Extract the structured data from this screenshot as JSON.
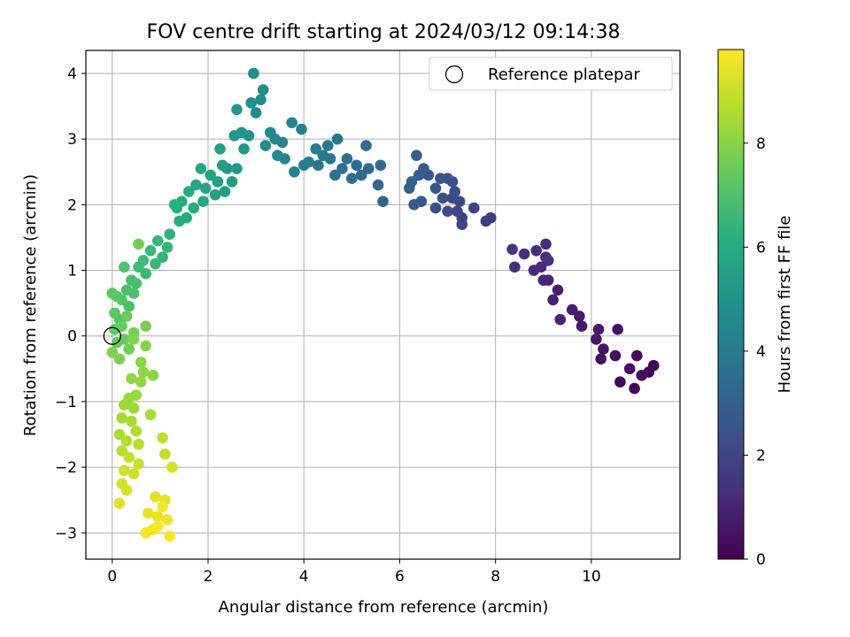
{
  "chart_data": {
    "type": "scatter",
    "title": "FOV centre drift starting at 2024/03/12 09:14:38",
    "xlabel": "Angular distance from reference (arcmin)",
    "ylabel": "Rotation from reference (arcmin)",
    "xlim": [
      -0.55,
      11.85
    ],
    "ylim": [
      -3.4,
      4.35
    ],
    "xticks": [
      0,
      2,
      4,
      6,
      8,
      10
    ],
    "yticks": [
      -3,
      -2,
      -1,
      0,
      1,
      2,
      3,
      4
    ],
    "grid": true,
    "legend": {
      "placement": "top-right",
      "entries": [
        "Reference platepar"
      ]
    },
    "colorbar": {
      "label": "Hours from first FF file",
      "colormap": "viridis",
      "range": [
        0,
        9.8
      ],
      "ticks": [
        0,
        2,
        4,
        6,
        8
      ]
    },
    "reference_point": {
      "x": 0,
      "y": 0
    },
    "series": [
      {
        "name": "Reference platepar",
        "marker": "open-circle",
        "points": [
          [
            0,
            0
          ]
        ]
      },
      {
        "marker": "filled-circle",
        "color_by": "hours",
        "points": [
          [
            10.9,
            -0.8,
            0.05
          ],
          [
            11.2,
            -0.55,
            0.1
          ],
          [
            10.6,
            -0.7,
            0.15
          ],
          [
            11.3,
            -0.45,
            0.2
          ],
          [
            10.95,
            -0.3,
            0.25
          ],
          [
            10.8,
            -0.5,
            0.3
          ],
          [
            11.05,
            -0.6,
            0.35
          ],
          [
            10.5,
            -0.3,
            0.4
          ],
          [
            10.2,
            -0.35,
            0.45
          ],
          [
            10.55,
            0.1,
            0.5
          ],
          [
            10.25,
            -0.2,
            0.55
          ],
          [
            10.1,
            -0.05,
            0.6
          ],
          [
            10.15,
            0.1,
            0.65
          ],
          [
            9.8,
            0.15,
            0.7
          ],
          [
            9.75,
            0.3,
            0.75
          ],
          [
            9.6,
            0.4,
            0.8
          ],
          [
            9.3,
            0.7,
            0.85
          ],
          [
            9.2,
            0.55,
            0.9
          ],
          [
            9.35,
            0.25,
            0.95
          ],
          [
            9.1,
            0.85,
            1.0
          ],
          [
            9.0,
            0.85,
            1.05
          ],
          [
            8.95,
            1.05,
            1.1
          ],
          [
            8.8,
            1.0,
            1.15
          ],
          [
            9.05,
            1.2,
            1.2
          ],
          [
            9.05,
            1.4,
            1.25
          ],
          [
            8.85,
            1.3,
            1.3
          ],
          [
            8.6,
            1.25,
            1.35
          ],
          [
            8.4,
            1.05,
            1.4
          ],
          [
            8.35,
            1.32,
            1.45
          ],
          [
            9.1,
            1.15,
            1.5
          ],
          [
            7.9,
            1.8,
            1.7
          ],
          [
            7.8,
            1.75,
            1.75
          ],
          [
            7.55,
            1.95,
            1.85
          ],
          [
            7.3,
            1.8,
            1.9
          ],
          [
            7.3,
            1.7,
            2.0
          ],
          [
            7.2,
            1.9,
            2.05
          ],
          [
            7.25,
            2.05,
            2.1
          ],
          [
            7.1,
            2.1,
            2.15
          ],
          [
            7.0,
            1.9,
            2.2
          ],
          [
            7.15,
            2.2,
            2.25
          ],
          [
            6.9,
            2.1,
            2.3
          ],
          [
            6.75,
            1.95,
            2.4
          ],
          [
            7.0,
            2.4,
            2.45
          ],
          [
            7.1,
            2.35,
            2.5
          ],
          [
            6.85,
            2.4,
            2.55
          ],
          [
            6.75,
            2.25,
            2.6
          ],
          [
            6.6,
            2.45,
            2.7
          ],
          [
            6.45,
            2.05,
            2.75
          ],
          [
            6.3,
            2.0,
            2.8
          ],
          [
            6.5,
            2.55,
            2.85
          ],
          [
            6.4,
            2.45,
            2.9
          ],
          [
            6.35,
            2.75,
            3.0
          ],
          [
            6.2,
            2.25,
            3.05
          ],
          [
            6.25,
            2.35,
            3.1
          ],
          [
            5.65,
            2.05,
            3.15
          ],
          [
            5.55,
            2.3,
            3.2
          ],
          [
            5.6,
            2.6,
            3.3
          ],
          [
            5.35,
            2.55,
            3.35
          ],
          [
            5.2,
            2.45,
            3.4
          ],
          [
            5.3,
            2.9,
            3.45
          ],
          [
            5.1,
            2.6,
            3.5
          ],
          [
            5.0,
            2.4,
            3.55
          ],
          [
            4.9,
            2.7,
            3.6
          ],
          [
            4.8,
            2.55,
            3.65
          ],
          [
            4.65,
            2.45,
            3.7
          ],
          [
            4.7,
            3.0,
            3.75
          ],
          [
            4.55,
            2.7,
            3.8
          ],
          [
            4.5,
            2.9,
            3.9
          ],
          [
            4.4,
            2.75,
            3.95
          ],
          [
            4.3,
            2.6,
            4.0
          ],
          [
            4.25,
            2.85,
            4.05
          ],
          [
            4.1,
            2.65,
            4.1
          ],
          [
            4.0,
            2.6,
            4.15
          ],
          [
            3.95,
            3.15,
            4.2
          ],
          [
            3.8,
            2.5,
            4.25
          ],
          [
            3.75,
            3.25,
            4.3
          ],
          [
            3.6,
            2.7,
            4.35
          ],
          [
            3.55,
            2.95,
            4.4
          ],
          [
            3.4,
            3.0,
            4.45
          ],
          [
            3.45,
            2.75,
            4.5
          ],
          [
            3.3,
            3.1,
            4.6
          ],
          [
            3.2,
            2.9,
            4.65
          ],
          [
            3.1,
            3.6,
            4.7
          ],
          [
            3.15,
            3.75,
            4.75
          ],
          [
            3.0,
            3.4,
            4.8
          ],
          [
            2.95,
            4.0,
            4.85
          ],
          [
            2.9,
            3.55,
            4.9
          ],
          [
            2.85,
            3.05,
            4.95
          ],
          [
            2.75,
            2.85,
            5.0
          ],
          [
            2.7,
            3.1,
            5.05
          ],
          [
            2.6,
            3.45,
            5.1
          ],
          [
            2.55,
            3.05,
            5.15
          ],
          [
            2.6,
            2.55,
            5.2
          ],
          [
            2.5,
            2.35,
            5.25
          ],
          [
            2.4,
            2.55,
            5.3
          ],
          [
            2.35,
            2.2,
            5.35
          ],
          [
            2.3,
            2.6,
            5.4
          ],
          [
            2.25,
            2.85,
            5.45
          ],
          [
            2.2,
            2.35,
            5.5
          ],
          [
            2.15,
            2.15,
            5.55
          ],
          [
            2.05,
            2.45,
            5.6
          ],
          [
            1.95,
            2.25,
            5.7
          ],
          [
            1.9,
            2.05,
            5.75
          ],
          [
            1.85,
            2.55,
            5.8
          ],
          [
            1.75,
            2.3,
            5.85
          ],
          [
            1.7,
            1.95,
            5.9
          ],
          [
            1.6,
            2.2,
            5.95
          ],
          [
            1.55,
            1.8,
            6.0
          ],
          [
            1.45,
            2.05,
            6.05
          ],
          [
            1.4,
            1.75,
            6.1
          ],
          [
            1.35,
            1.95,
            6.15
          ],
          [
            1.3,
            2.0,
            6.2
          ],
          [
            1.2,
            1.55,
            6.3
          ],
          [
            1.15,
            1.35,
            6.35
          ],
          [
            1.05,
            1.2,
            6.4
          ],
          [
            0.95,
            1.45,
            6.45
          ],
          [
            0.9,
            1.1,
            6.5
          ],
          [
            0.8,
            1.3,
            6.55
          ],
          [
            0.7,
            0.95,
            6.6
          ],
          [
            0.65,
            1.15,
            6.65
          ],
          [
            0.55,
            1.05,
            6.7
          ],
          [
            0.5,
            0.8,
            6.8
          ],
          [
            0.45,
            0.65,
            6.85
          ],
          [
            0.4,
            0.85,
            6.9
          ],
          [
            0.35,
            0.45,
            6.95
          ],
          [
            0.3,
            0.7,
            7.0
          ],
          [
            0.25,
            1.05,
            7.05
          ],
          [
            0.2,
            0.55,
            7.1
          ],
          [
            0.15,
            0.25,
            7.15
          ],
          [
            0.1,
            0.6,
            7.2
          ],
          [
            0.05,
            0.35,
            7.25
          ],
          [
            0.0,
            0.65,
            7.3
          ],
          [
            0.05,
            0.1,
            7.35
          ],
          [
            0.1,
            -0.1,
            7.4
          ],
          [
            0.2,
            0.15,
            7.45
          ],
          [
            0.25,
            -0.05,
            7.5
          ],
          [
            0.3,
            0.3,
            7.55
          ],
          [
            0.35,
            -0.2,
            7.6
          ],
          [
            0.45,
            0.05,
            7.65
          ],
          [
            0.55,
            1.4,
            7.7
          ],
          [
            0.7,
            0.15,
            7.75
          ],
          [
            0.0,
            -0.25,
            7.8
          ],
          [
            0.15,
            -0.35,
            7.85
          ],
          [
            0.45,
            -0.05,
            7.9
          ],
          [
            0.7,
            -0.15,
            7.95
          ],
          [
            0.6,
            -0.4,
            8.0
          ],
          [
            0.65,
            -0.55,
            8.05
          ],
          [
            0.85,
            -0.6,
            8.1
          ],
          [
            0.4,
            -0.65,
            8.15
          ],
          [
            0.6,
            -0.7,
            8.2
          ],
          [
            0.35,
            -0.95,
            8.25
          ],
          [
            0.5,
            -0.9,
            8.3
          ],
          [
            0.25,
            -1.05,
            8.35
          ],
          [
            0.45,
            -1.1,
            8.4
          ],
          [
            0.2,
            -1.25,
            8.45
          ],
          [
            0.8,
            -1.2,
            8.5
          ],
          [
            0.4,
            -1.3,
            8.55
          ],
          [
            0.15,
            -1.5,
            8.6
          ],
          [
            0.5,
            -1.45,
            8.65
          ],
          [
            0.3,
            -1.6,
            8.7
          ],
          [
            0.55,
            -1.65,
            8.75
          ],
          [
            0.2,
            -1.75,
            8.8
          ],
          [
            1.05,
            -1.55,
            8.85
          ],
          [
            1.1,
            -1.8,
            8.9
          ],
          [
            0.35,
            -1.85,
            8.95
          ],
          [
            0.55,
            -1.95,
            9.0
          ],
          [
            0.25,
            -2.05,
            9.05
          ],
          [
            0.45,
            -2.1,
            9.1
          ],
          [
            1.25,
            -2.0,
            9.15
          ],
          [
            0.2,
            -2.25,
            9.2
          ],
          [
            0.3,
            -2.35,
            9.25
          ],
          [
            0.15,
            -2.55,
            9.3
          ],
          [
            0.9,
            -2.45,
            9.35
          ],
          [
            1.1,
            -2.5,
            9.4
          ],
          [
            0.75,
            -2.7,
            9.45
          ],
          [
            0.95,
            -2.75,
            9.5
          ],
          [
            1.15,
            -2.8,
            9.55
          ],
          [
            0.85,
            -2.95,
            9.6
          ],
          [
            1.05,
            -2.6,
            9.65
          ],
          [
            0.7,
            -3.0,
            9.7
          ],
          [
            1.2,
            -3.05,
            9.75
          ],
          [
            0.95,
            -2.9,
            9.8
          ]
        ]
      }
    ]
  }
}
